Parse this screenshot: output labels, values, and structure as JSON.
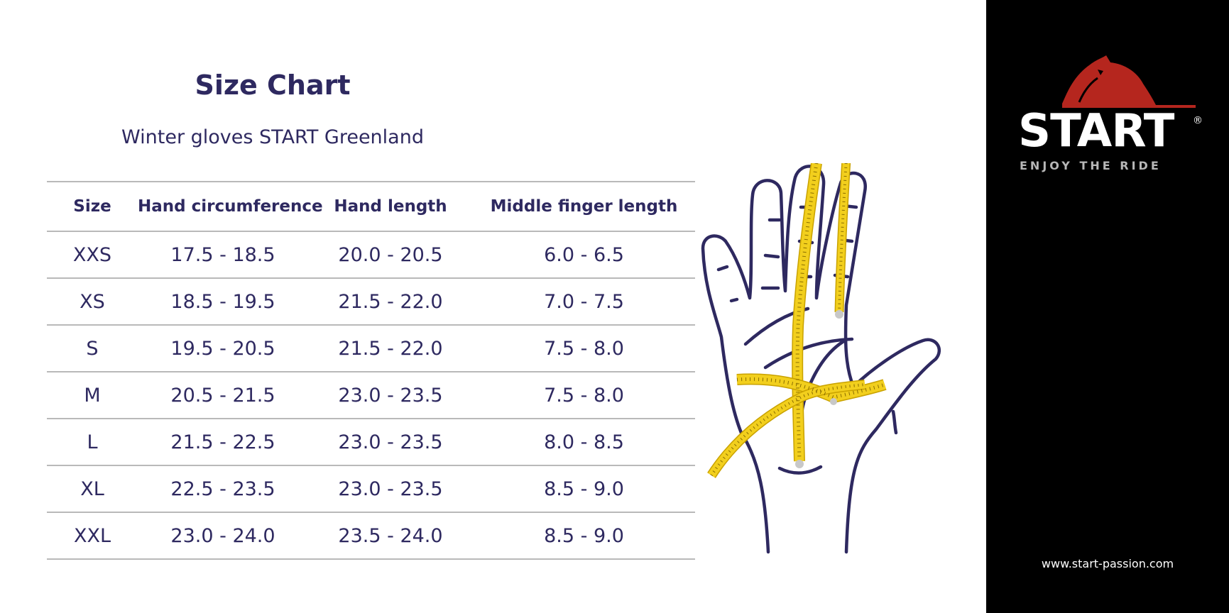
{
  "header": {
    "title": "Size Chart",
    "subtitle": "Winter gloves START Greenland"
  },
  "table": {
    "headers": [
      "Size",
      "Hand circumference",
      "Hand length",
      "Middle finger length"
    ],
    "rows": [
      [
        "XXS",
        "17.5 - 18.5",
        "20.0 - 20.5",
        "6.0 - 6.5"
      ],
      [
        "XS",
        "18.5 - 19.5",
        "21.5 - 22.0",
        "7.0 - 7.5"
      ],
      [
        "S",
        "19.5 - 20.5",
        "21.5 - 22.0",
        "7.5 - 8.0"
      ],
      [
        "M",
        "20.5 - 21.5",
        "23.0 - 23.5",
        "7.5 - 8.0"
      ],
      [
        "L",
        "21.5 - 22.5",
        "23.0 - 23.5",
        "8.0 - 8.5"
      ],
      [
        "XL",
        "22.5 - 23.5",
        "23.0 - 23.5",
        "8.5 - 9.0"
      ],
      [
        "XXL",
        "23.0 - 24.0",
        "23.5 - 24.0",
        "8.5 - 9.0"
      ]
    ]
  },
  "brand": {
    "name": "START",
    "registered": "®",
    "tagline": "ENJOY THE RIDE",
    "website": "www.start-passion.com",
    "logo_color": "#b5261e"
  },
  "illustration": {
    "icon": "hand-measuring-tape-icon",
    "outline_color": "#2e2960",
    "tape_color": "#f2cf1d"
  }
}
